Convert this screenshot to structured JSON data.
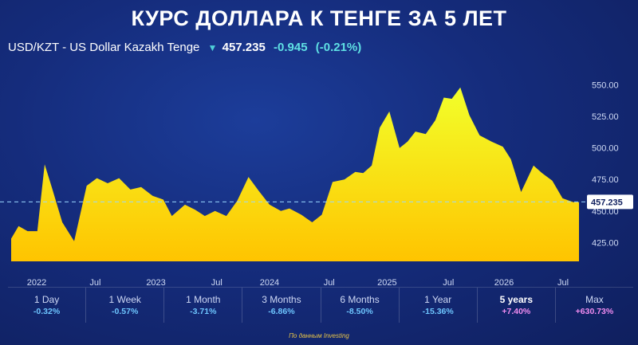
{
  "title": "КУРС ДОЛЛАРА К ТЕНГЕ ЗА 5 ЛЕТ",
  "ticker": {
    "name": "USD/KZT - US Dollar Kazakh Tenge",
    "price": "457.235",
    "change": "-0.945",
    "change_pct": "(-0.21%)"
  },
  "ranges": [
    {
      "label": "1 Day",
      "value": "-0.32%"
    },
    {
      "label": "1 Week",
      "value": "-0.57%"
    },
    {
      "label": "1 Month",
      "value": "-3.71%"
    },
    {
      "label": "3 Months",
      "value": "-6.86%"
    },
    {
      "label": "6 Months",
      "value": "-8.50%"
    },
    {
      "label": "1 Year",
      "value": "-15.36%"
    },
    {
      "label": "5 years",
      "value": "+7.40%"
    },
    {
      "label": "Max",
      "value": "+630.73%"
    }
  ],
  "source": "По данным Investing",
  "colors": {
    "area_top": "#f2ff2a",
    "area_bottom": "#ffc400",
    "current_line": "#9ad8ff"
  },
  "chart_data": {
    "type": "area",
    "current_value": 457.235,
    "current_label": "457.235",
    "ylim": [
      410,
      558
    ],
    "yticks": [
      425,
      450,
      475,
      500,
      525,
      550
    ],
    "ytick_labels": [
      "425.00",
      "450.00",
      "475.00",
      "500.00",
      "525.00",
      "550.00"
    ],
    "xtick_labels": [
      "2022",
      "Jul",
      "2023",
      "Jul",
      "2024",
      "Jul",
      "2025",
      "Jul",
      "2026",
      "Jul"
    ],
    "xtick_positions": [
      0.045,
      0.148,
      0.255,
      0.362,
      0.455,
      0.56,
      0.662,
      0.77,
      0.868,
      0.972
    ],
    "series": [
      {
        "x": [
          0,
          0.013,
          0.029,
          0.046,
          0.059,
          0.072,
          0.09,
          0.111,
          0.133,
          0.151,
          0.17,
          0.19,
          0.21,
          0.229,
          0.249,
          0.268,
          0.283,
          0.306,
          0.324,
          0.341,
          0.359,
          0.379,
          0.398,
          0.418,
          0.436,
          0.455,
          0.475,
          0.49,
          0.511,
          0.53,
          0.547,
          0.566,
          0.587,
          0.606,
          0.62,
          0.635,
          0.649,
          0.666,
          0.684,
          0.698,
          0.712,
          0.73,
          0.747,
          0.762,
          0.776,
          0.791,
          0.807,
          0.825,
          0.846,
          0.866,
          0.88,
          0.898,
          0.92,
          0.935,
          0.953,
          0.971,
          0.99,
          1
        ],
        "values": [
          428,
          438,
          434,
          434,
          487,
          468,
          441,
          426,
          470,
          476,
          472,
          476,
          467,
          469,
          462,
          459,
          446,
          455,
          451,
          446,
          450,
          446,
          458,
          477,
          466,
          455,
          450,
          452,
          447,
          441,
          447,
          473,
          475,
          481,
          480,
          486,
          516,
          529,
          500,
          505,
          513,
          511,
          522,
          540,
          539,
          548,
          526,
          510,
          505,
          501,
          491,
          465,
          486,
          480,
          474,
          460,
          457,
          457
        ]
      }
    ]
  }
}
